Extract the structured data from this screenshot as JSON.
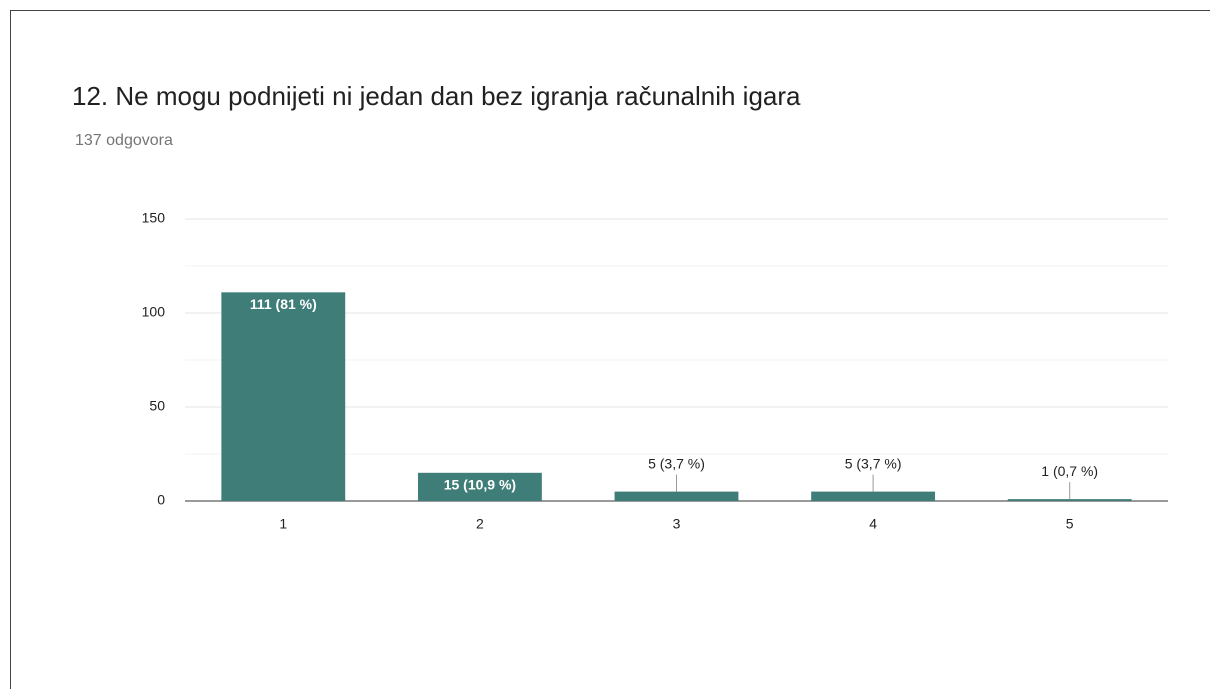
{
  "chart_data": {
    "type": "bar",
    "title": "12. Ne mogu podnijeti ni jedan dan bez igranja računalnih igara",
    "subtitle": "137 odgovora",
    "categories": [
      "1",
      "2",
      "3",
      "4",
      "5"
    ],
    "values": [
      111,
      15,
      5,
      5,
      1
    ],
    "value_labels": [
      "111 (81 %)",
      "15 (10,9 %)",
      "5 (3,7 %)",
      "5 (3,7 %)",
      "1 (0,7 %)"
    ],
    "color": "#3f7e78",
    "ylim": [
      0,
      150
    ],
    "yticks": [
      0,
      50,
      100,
      150
    ],
    "minor_yticks": [
      25,
      75,
      125
    ],
    "grid": true
  }
}
